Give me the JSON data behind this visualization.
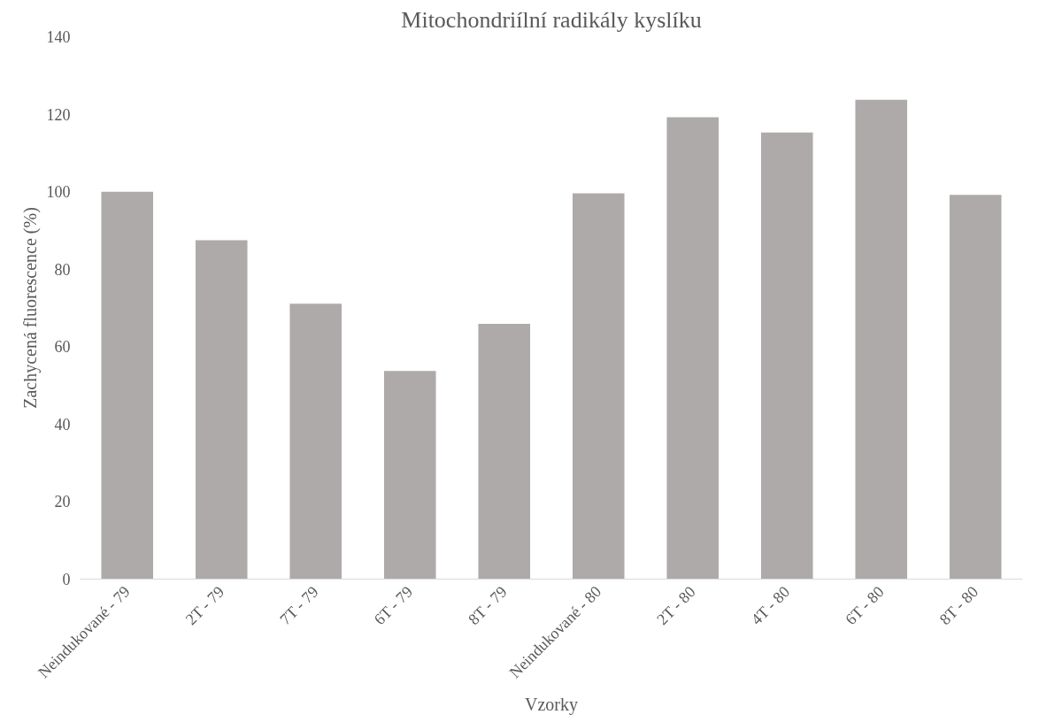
{
  "chart_data": {
    "type": "bar",
    "title": "Mitochondriílní radikály kyslíku",
    "xlabel": "Vzorky",
    "ylabel": "Zachycená fluorescence (%)",
    "categories": [
      "Neindukované - 79",
      "2T - 79",
      "7T - 79",
      "6T - 79",
      "8T - 79",
      "Neindukované - 80",
      "2T - 80",
      "4T - 80",
      "6T - 80",
      "8T - 80"
    ],
    "values": [
      100,
      87.5,
      71.1,
      53.7,
      65.9,
      99.6,
      119.2,
      115.3,
      123.7,
      99.2
    ],
    "color": "#aeaaaa",
    "ylim": [
      0,
      140
    ],
    "yticks": [
      0,
      20,
      40,
      60,
      80,
      100,
      120,
      140
    ],
    "grid": false
  }
}
